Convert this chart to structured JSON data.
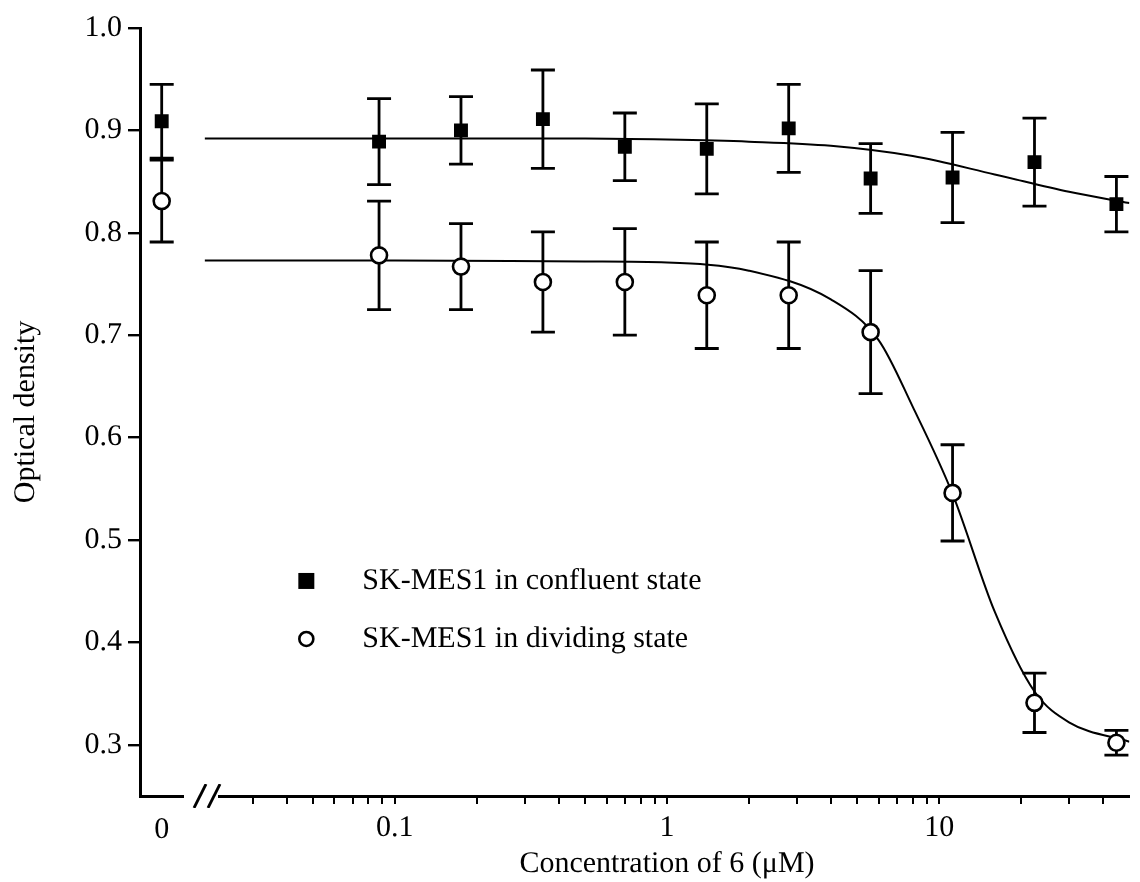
{
  "chart_data": [
    {
      "type": "scatter",
      "ylabel": "Optical density",
      "tick_labels": "xy",
      "grid": false,
      "categories": [
        "0"
      ],
      "ylim": [
        0.25,
        1.0
      ],
      "yticks": [
        0.3,
        0.4,
        0.5,
        0.6,
        0.7,
        0.8,
        0.9,
        {
          "value": 1.0,
          "label": "1.0"
        }
      ],
      "series": [
        {
          "type": "scatter",
          "marker": "square",
          "color": "#000000",
          "values": [
            0.909
          ],
          "errors": [
            0.036
          ]
        },
        {
          "type": "scatter",
          "marker": "circle",
          "color": "#000000",
          "values": [
            0.831
          ],
          "errors": [
            0.04
          ]
        }
      ]
    },
    {
      "type": "scatter",
      "xlabel": "Concentration of 6 (μM)",
      "log": "x",
      "grid": false,
      "legend": "left",
      "tick_labels": "x",
      "xlim": [
        0.02,
        50
      ],
      "ylim": [
        0.25,
        1.0
      ],
      "xticks": [
        {
          "value": 0.02,
          "label": null
        },
        {
          "value": 0.03,
          "label": null
        },
        {
          "value": 0.04,
          "label": null
        },
        {
          "value": 0.05,
          "label": null
        },
        {
          "value": 0.06,
          "label": null
        },
        {
          "value": 0.07,
          "label": null
        },
        {
          "value": 0.08,
          "label": null
        },
        {
          "value": 0.09,
          "label": null
        },
        0.1,
        {
          "value": 0.2,
          "label": null
        },
        {
          "value": 0.3,
          "label": null
        },
        {
          "value": 0.4,
          "label": null
        },
        {
          "value": 0.5,
          "label": null
        },
        {
          "value": 0.6,
          "label": null
        },
        {
          "value": 0.7,
          "label": null
        },
        {
          "value": 0.8,
          "label": null
        },
        {
          "value": 0.9,
          "label": null
        },
        1,
        {
          "value": 2,
          "label": null
        },
        {
          "value": 3,
          "label": null
        },
        {
          "value": 4,
          "label": null
        },
        {
          "value": 5,
          "label": null
        },
        {
          "value": 6,
          "label": null
        },
        {
          "value": 7,
          "label": null
        },
        {
          "value": 8,
          "label": null
        },
        {
          "value": 9,
          "label": null
        },
        10,
        {
          "value": 20,
          "label": null
        },
        {
          "value": 30,
          "label": null
        },
        {
          "value": 40,
          "label": null
        }
      ],
      "series": [
        {
          "name": "SK-MES1 in confluent state",
          "type": "scatter",
          "marker": "square",
          "color": "#000000",
          "x": [
            0.0875,
            0.175,
            0.35,
            0.7,
            1.4,
            2.8,
            5.6,
            11.2,
            22.4,
            44.8
          ],
          "values": [
            0.889,
            0.9,
            0.911,
            0.884,
            0.882,
            0.902,
            0.853,
            0.854,
            0.869,
            0.828
          ],
          "errors": [
            0.042,
            0.033,
            0.048,
            0.033,
            0.044,
            0.043,
            0.034,
            0.044,
            0.043,
            0.027
          ]
        },
        {
          "name": "SK-MES1 in dividing state",
          "type": "scatter",
          "marker": "circle",
          "color": "#000000",
          "x": [
            0.0875,
            0.175,
            0.35,
            0.7,
            1.4,
            2.8,
            5.6,
            11.2,
            22.4,
            44.8
          ],
          "values": [
            0.778,
            0.767,
            0.752,
            0.752,
            0.739,
            0.739,
            0.703,
            0.546,
            0.341,
            0.302
          ],
          "errors": [
            0.053,
            0.042,
            0.049,
            0.052,
            0.052,
            0.052,
            0.06,
            0.047,
            0.029,
            0.012
          ]
        },
        {
          "type": "line",
          "marker": "none",
          "color": "#000000",
          "x": [
            0.02,
            0.1,
            0.5,
            1,
            2,
            4,
            8,
            16,
            30,
            50
          ],
          "values": [
            0.892,
            0.892,
            0.892,
            0.891,
            0.889,
            0.885,
            0.875,
            0.857,
            0.84,
            0.829
          ]
        },
        {
          "type": "line",
          "marker": "none",
          "color": "#000000",
          "x": [
            0.02,
            0.1,
            0.5,
            1,
            2,
            4,
            6,
            8,
            11.2,
            16,
            22.4,
            30,
            50
          ],
          "values": [
            0.773,
            0.773,
            0.772,
            0.771,
            0.763,
            0.735,
            0.695,
            0.63,
            0.545,
            0.43,
            0.352,
            0.322,
            0.303
          ]
        }
      ]
    }
  ]
}
